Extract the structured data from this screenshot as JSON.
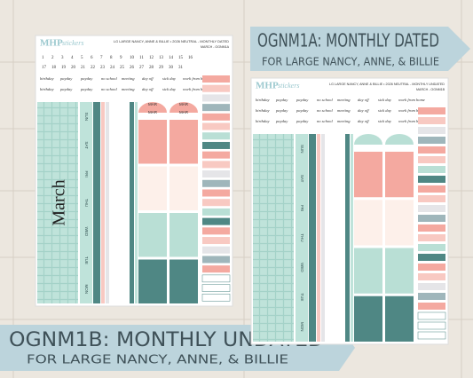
{
  "banner_top": {
    "title": "OGNM1A: MONTHLY DATED",
    "subtitle": "FOR LARGE NANCY, ANNE, & BILLIE"
  },
  "banner_bottom": {
    "title": "OGNM1B: MONTHLY UNDATED",
    "subtitle": "FOR LARGE NANCY, ANNE, & BILLIE"
  },
  "sheet_dated": {
    "logo": "MHP",
    "logo_sub": "stickers",
    "header": "LG LARGE NANCY, ANNE & BILLIE • 2026 NEUTRAL - MONTHLY DATED",
    "code": "MARCH - OGNM1A",
    "numbers": [
      "1",
      "2",
      "3",
      "4",
      "5",
      "6",
      "7",
      "8",
      "9",
      "10",
      "11",
      "12",
      "13",
      "14",
      "15",
      "16",
      "17",
      "18",
      "19",
      "20",
      "21",
      "22",
      "23",
      "24",
      "25",
      "26",
      "27",
      "28",
      "29",
      "30",
      "31"
    ],
    "labels": [
      "birthday",
      "payday",
      "payday",
      "no school",
      "meeting",
      "day off",
      "sick day",
      "work from home",
      "birthday",
      "payday",
      "payday",
      "no school",
      "meeting",
      "day off",
      "sick day",
      "work from home"
    ],
    "month": "March",
    "days": [
      "SUN",
      "SAT",
      "FRI",
      "THU",
      "WED",
      "TUE",
      "MON"
    ],
    "tabs": [
      "MAR",
      "MAR",
      "MAR",
      "MAR"
    ]
  },
  "sheet_undated": {
    "logo": "MHP",
    "logo_sub": "stickers",
    "header": "LG LARGE NANCY, ANNE & BILLIE • 2026 NEUTRAL - MONTHLY UNDATED",
    "code": "MARCH - OGNM1B",
    "labels": [
      "birthday",
      "payday",
      "payday",
      "no school",
      "meeting",
      "day off",
      "sick day",
      "work from home",
      "birthday",
      "payday",
      "payday",
      "no school",
      "meeting",
      "day off",
      "sick day",
      "work from home",
      "birthday",
      "payday",
      "payday",
      "no school",
      "meeting",
      "day off",
      "sick day",
      "work from home"
    ],
    "days": [
      "SUN",
      "SAT",
      "FRI",
      "THU",
      "WED",
      "TUE",
      "MON"
    ]
  }
}
